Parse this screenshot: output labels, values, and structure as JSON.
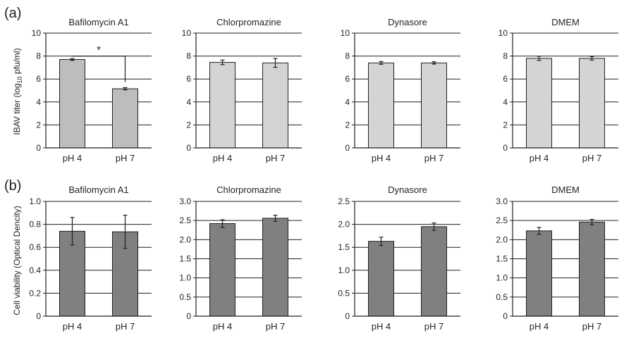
{
  "panel_labels": [
    "(a)",
    "(b)"
  ],
  "rows": [
    {
      "ylabel_prefix": "IBAV titer (log",
      "ylabel_sub": "10",
      "ylabel_suffix": " pfu/ml)",
      "bar_color": "#bdbdbd",
      "bar_color_alt": "#d4d4d4"
    },
    {
      "ylabel_prefix": "Cell viability (Optical Dencity)",
      "ylabel_sub": "",
      "ylabel_suffix": "",
      "bar_color": "#808080",
      "bar_color_alt": "#808080"
    }
  ],
  "significance_label": "*",
  "chart_data": [
    {
      "panel": "(a)",
      "type": "bar",
      "title": "Bafilomycin A1",
      "categories": [
        "pH 4",
        "pH 7"
      ],
      "values": [
        7.7,
        5.15
      ],
      "errors": [
        0.08,
        0.1
      ],
      "ylim": [
        0,
        10
      ],
      "yticks": [
        "0",
        "2",
        "4",
        "6",
        "8",
        "10"
      ],
      "grid": true,
      "significance": "*"
    },
    {
      "panel": "(a)",
      "type": "bar",
      "title": "Chlorpromazine",
      "categories": [
        "pH 4",
        "pH 7"
      ],
      "values": [
        7.45,
        7.4
      ],
      "errors": [
        0.2,
        0.38
      ],
      "ylim": [
        0,
        10
      ],
      "yticks": [
        "0",
        "2",
        "4",
        "6",
        "8",
        "10"
      ],
      "grid": true
    },
    {
      "panel": "(a)",
      "type": "bar",
      "title": "Dynasore",
      "categories": [
        "pH 4",
        "pH 7"
      ],
      "values": [
        7.4,
        7.4
      ],
      "errors": [
        0.12,
        0.1
      ],
      "ylim": [
        0,
        10
      ],
      "yticks": [
        "0",
        "2",
        "4",
        "6",
        "8",
        "10"
      ],
      "grid": true
    },
    {
      "panel": "(a)",
      "type": "bar",
      "title": "DMEM",
      "categories": [
        "pH 4",
        "pH 7"
      ],
      "values": [
        7.8,
        7.8
      ],
      "errors": [
        0.18,
        0.15
      ],
      "ylim": [
        0,
        10
      ],
      "yticks": [
        "0",
        "2",
        "4",
        "6",
        "8",
        "10"
      ],
      "grid": true
    },
    {
      "panel": "(b)",
      "type": "bar",
      "title": "Bafilomycin A1",
      "categories": [
        "pH 4",
        "pH 7"
      ],
      "values": [
        0.74,
        0.735
      ],
      "errors": [
        0.12,
        0.145
      ],
      "ylim": [
        0,
        1.0
      ],
      "yticks": [
        "0",
        "0.2",
        "0.4",
        "0.6",
        "0.8",
        "1.0"
      ],
      "grid": true
    },
    {
      "panel": "(b)",
      "type": "bar",
      "title": "Chlorpromazine",
      "categories": [
        "pH 4",
        "pH 7"
      ],
      "values": [
        2.42,
        2.56
      ],
      "errors": [
        0.1,
        0.08
      ],
      "ylim": [
        0,
        3.0
      ],
      "yticks": [
        "0",
        "0.5",
        "1.0",
        "1.5",
        "2.0",
        "2.5",
        "3.0"
      ],
      "grid": true
    },
    {
      "panel": "(b)",
      "type": "bar",
      "title": "Dynasore",
      "categories": [
        "pH 4",
        "pH 7"
      ],
      "values": [
        1.63,
        1.95
      ],
      "errors": [
        0.09,
        0.08
      ],
      "ylim": [
        0,
        2.5
      ],
      "yticks": [
        "0",
        "0.5",
        "1.0",
        "1.5",
        "2.0",
        "2.5"
      ],
      "grid": true
    },
    {
      "panel": "(b)",
      "type": "bar",
      "title": "DMEM",
      "categories": [
        "pH 4",
        "pH 7"
      ],
      "values": [
        2.23,
        2.46
      ],
      "errors": [
        0.09,
        0.07
      ],
      "ylim": [
        0,
        3.0
      ],
      "yticks": [
        "0",
        "0.5",
        "1.0",
        "1.5",
        "2.0",
        "2.5",
        "3.0"
      ],
      "grid": true
    }
  ]
}
